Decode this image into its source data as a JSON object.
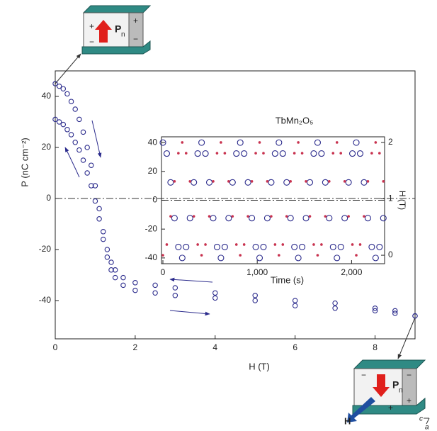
{
  "chart_data": [
    {
      "type": "scatter",
      "x_label": "H (T)",
      "y_label": "P (nC cm⁻²)",
      "xlim": [
        0,
        9
      ],
      "ylim": [
        -55,
        50
      ],
      "xticks": [
        0,
        2,
        4,
        6,
        8
      ],
      "yticks": [
        -40,
        -20,
        0,
        20,
        40
      ],
      "zero_line": true,
      "series": [
        {
          "color": "#2b2b8c",
          "x": [
            0,
            0.1,
            0.2,
            0.3,
            0.4,
            0.5,
            0.6,
            0.7,
            0.8,
            0.9,
            1.0,
            1.1,
            1.2,
            1.3,
            1.4,
            1.5,
            1.7,
            2,
            2.5,
            3,
            4,
            5,
            6,
            7,
            8,
            8.5,
            9
          ],
          "values": [
            45,
            44,
            43,
            41,
            38,
            35,
            31,
            26,
            20,
            13,
            5,
            -4,
            -13,
            -20,
            -25,
            -28,
            -31,
            -33,
            -34,
            -35,
            -37,
            -38,
            -40,
            -41,
            -43,
            -44,
            -46
          ]
        },
        {
          "color": "#2b2b8c",
          "x": [
            0,
            0.1,
            0.2,
            0.3,
            0.4,
            0.5,
            0.6,
            0.7,
            0.8,
            0.9,
            1.0,
            1.1,
            1.2,
            1.3,
            1.4,
            1.5,
            1.7,
            2,
            2.5,
            3,
            4,
            5,
            6,
            7,
            8,
            8.5,
            9
          ],
          "values": [
            31,
            30,
            29,
            27,
            25,
            22,
            19,
            15,
            10,
            5,
            -1,
            -8,
            -16,
            -23,
            -28,
            -31,
            -34,
            -36,
            -37,
            -38,
            -39,
            -40,
            -42,
            -43,
            -44,
            -45,
            -46
          ]
        }
      ]
    },
    {
      "type": "scatter",
      "title": "TbMn₂O₅",
      "x_label": "Time (s)",
      "y2_label": "H (T)",
      "xlim": [
        -15,
        2350
      ],
      "ylim": [
        -44,
        44
      ],
      "y2lim": [
        -0.15,
        2.1
      ],
      "xticks": [
        0,
        {
          "value": 1000,
          "label": "1,000"
        },
        {
          "value": 2000,
          "label": "2,000"
        }
      ],
      "yticks": [
        -40,
        -20,
        0,
        20,
        40
      ],
      "y2ticks": [
        0,
        1,
        2
      ],
      "zero_line": true,
      "x": [
        0,
        41,
        82,
        123,
        164,
        205,
        246,
        287,
        328,
        369,
        410,
        451,
        492,
        533,
        574,
        615,
        656,
        697,
        738,
        779,
        820,
        861,
        902,
        943,
        984,
        1025,
        1066,
        1107,
        1148,
        1189,
        1230,
        1271,
        1312,
        1353,
        1394,
        1435,
        1476,
        1517,
        1558,
        1599,
        1640,
        1681,
        1722,
        1763,
        1804,
        1845,
        1886,
        1927,
        1968,
        2009,
        2050,
        2091,
        2132,
        2173,
        2214,
        2255,
        2296,
        2337
      ],
      "series": [
        {
          "color": "#2b2b8c",
          "values": [
            40,
            32.4,
            12.4,
            -12.4,
            -32.4,
            -40,
            -32.4,
            -12.4,
            12.4,
            32.4,
            40,
            32.4,
            12.4,
            -12.4,
            -32.4,
            -40,
            -32.4,
            -12.4,
            12.4,
            32.4,
            40,
            32.4,
            12.4,
            -12.4,
            -32.4,
            -40,
            -32.4,
            -12.4,
            12.4,
            32.4,
            40,
            32.4,
            12.4,
            -12.4,
            -32.4,
            -40,
            -32.4,
            -12.4,
            12.4,
            32.4,
            40,
            32.4,
            12.4,
            -12.4,
            -32.4,
            -40,
            -32.4,
            -12.4,
            12.4,
            32.4,
            40,
            32.4,
            12.4,
            -12.4,
            -32.4,
            -40,
            -32.4,
            -12.4
          ]
        },
        {
          "color": "#c8324f",
          "axis": "y2",
          "values": [
            0,
            0.19,
            0.69,
            1.31,
            1.81,
            2,
            1.81,
            1.31,
            0.69,
            0.19,
            0,
            0.19,
            0.69,
            1.31,
            1.81,
            2,
            1.81,
            1.31,
            0.69,
            0.19,
            0,
            0.19,
            0.69,
            1.31,
            1.81,
            2,
            1.81,
            1.31,
            0.69,
            0.19,
            0,
            0.19,
            0.69,
            1.31,
            1.81,
            2,
            1.81,
            1.31,
            0.69,
            0.19,
            0,
            0.19,
            0.69,
            1.31,
            1.81,
            2,
            1.81,
            1.31,
            0.69,
            0.19,
            0,
            0.19,
            0.69,
            1.31,
            1.81,
            2,
            1.81,
            1.31
          ]
        }
      ]
    }
  ],
  "icons": {
    "polarization": "P",
    "subscript": "n",
    "plus": "+",
    "minus": "−",
    "field": "H",
    "axis_c": "c",
    "axis_a": "a"
  }
}
